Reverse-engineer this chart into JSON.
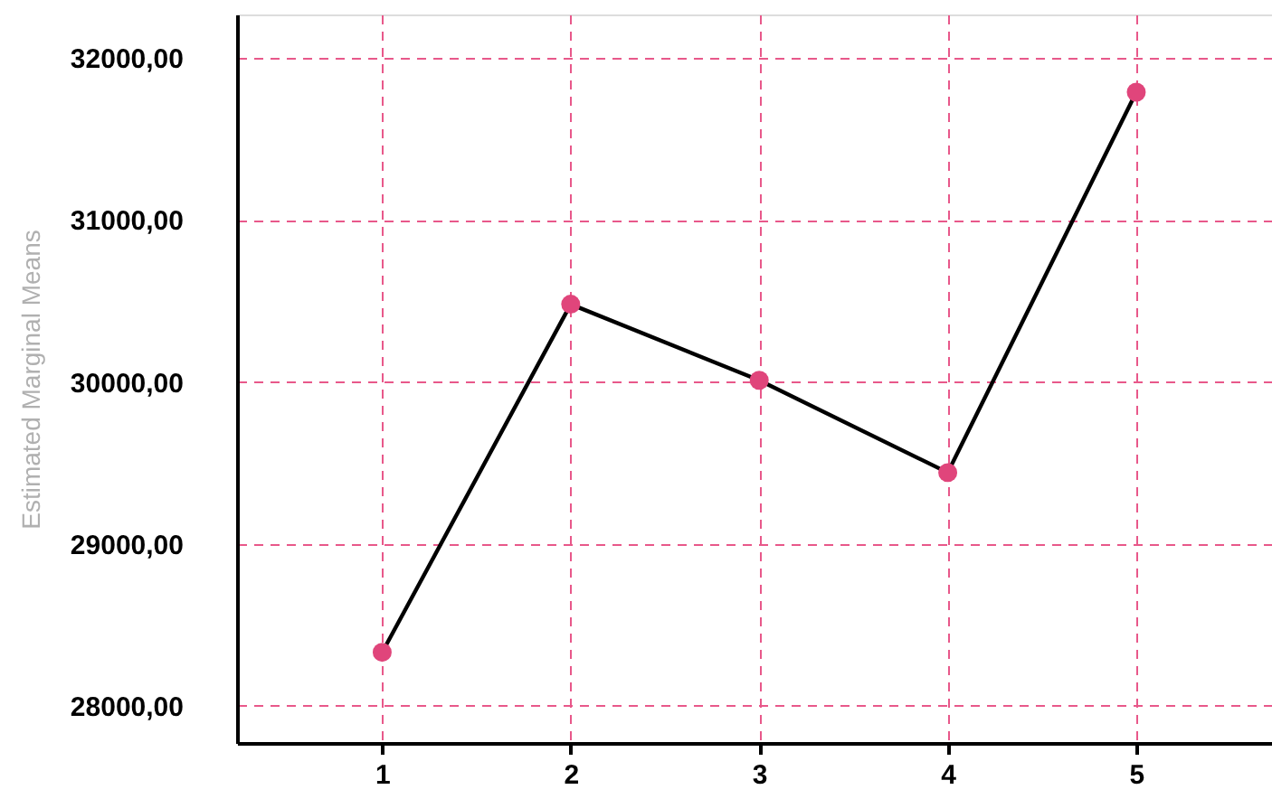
{
  "chart_data": {
    "type": "line",
    "ylabel": "Estimated Marginal Means",
    "x": [
      1,
      2,
      3,
      4,
      5
    ],
    "series": [
      {
        "color": "#000000",
        "colors": [
          "#e0457b",
          "#e0457b",
          "#e0457b",
          "#e0457b",
          "#e0457b"
        ],
        "values": [
          28330,
          30480,
          30010,
          29440,
          31790
        ]
      }
    ],
    "xlim": [
      0.23,
      5.72
    ],
    "xticks": [
      1,
      2,
      3,
      4,
      5
    ],
    "ylim": [
      27770,
      32270
    ],
    "yticks": [
      {
        "value": 28000,
        "label": "28000,00"
      },
      {
        "value": 29000,
        "label": "29000,00"
      },
      {
        "value": 30000,
        "label": "30000,00"
      },
      {
        "value": 31000,
        "label": "31000,00"
      },
      {
        "value": 32000,
        "label": "32000,00"
      }
    ],
    "grid": true,
    "marker": "circle",
    "line_style": "solid"
  }
}
